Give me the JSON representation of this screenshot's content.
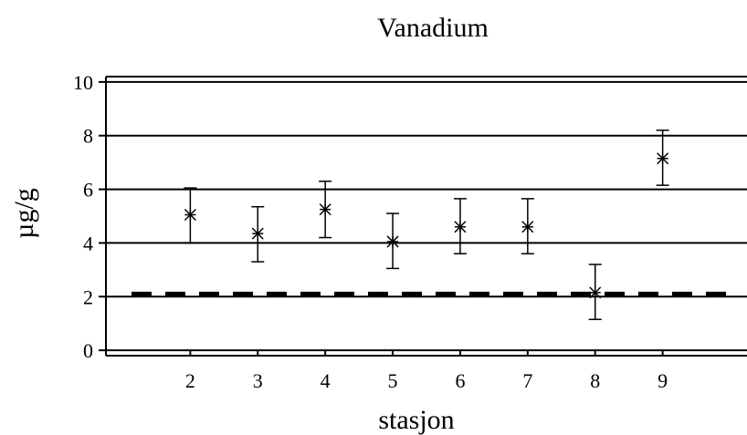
{
  "chart_data": {
    "type": "scatter",
    "title": "Vanadium",
    "xlabel": "stasjon",
    "ylabel": "µg/g",
    "x_ticks": [
      "2",
      "3",
      "4",
      "5",
      "6",
      "7",
      "8",
      "9"
    ],
    "y_ticks": [
      "0",
      "2",
      "4",
      "6",
      "8",
      "10"
    ],
    "xlim": [
      0.75,
      10.25
    ],
    "ylim": [
      -0.2,
      10.2
    ],
    "grid": "horizontal",
    "reference_line": 2.1,
    "points": [
      {
        "x": 2,
        "y": 5.05,
        "low": 4.0,
        "high": 6.05
      },
      {
        "x": 3,
        "y": 4.35,
        "low": 3.3,
        "high": 5.35
      },
      {
        "x": 4,
        "y": 5.25,
        "low": 4.2,
        "high": 6.3
      },
      {
        "x": 5,
        "y": 4.05,
        "low": 3.05,
        "high": 5.1
      },
      {
        "x": 6,
        "y": 4.6,
        "low": 3.6,
        "high": 5.65
      },
      {
        "x": 7,
        "y": 4.6,
        "low": 3.6,
        "high": 5.65
      },
      {
        "x": 8,
        "y": 2.15,
        "low": 1.15,
        "high": 3.2
      },
      {
        "x": 9,
        "y": 7.15,
        "low": 6.15,
        "high": 8.2
      }
    ]
  }
}
